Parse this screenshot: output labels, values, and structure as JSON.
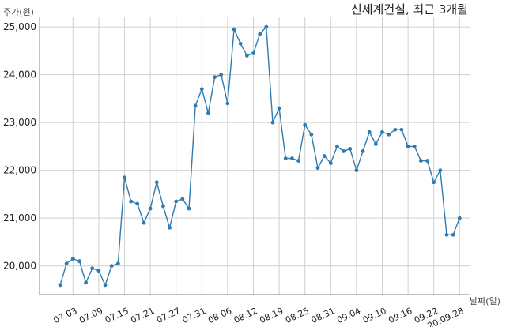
{
  "chart_data": {
    "type": "line",
    "title": "신세계건설, 최근 3개월",
    "ylabel": "주가(원)",
    "xlabel": "날짜(일)",
    "ylim": [
      19400,
      25200
    ],
    "yticks": [
      20000,
      21000,
      22000,
      23000,
      24000,
      25000
    ],
    "ytick_labels": [
      "20,000",
      "21,000",
      "22,000",
      "23,000",
      "24,000",
      "25,000"
    ],
    "xtick_labels": [
      "07.03",
      "07.09",
      "07.15",
      "07.21",
      "07.27",
      "07.31",
      "08.06",
      "08.12",
      "08.19",
      "08.25",
      "08.31",
      "09.04",
      "09.10",
      "09.16",
      "09.22",
      "20.09.28"
    ],
    "xtick_index": [
      2,
      6,
      10,
      14,
      18,
      22,
      26,
      30,
      34,
      38,
      42,
      46,
      50,
      54,
      58,
      62
    ],
    "grid": true,
    "color": "#2f7bb0",
    "series": [
      {
        "values": [
          19600,
          20050,
          20150,
          20100,
          19650,
          19950,
          19900,
          19600,
          20000,
          20050,
          21850,
          21350,
          21300,
          20900,
          21200,
          21750,
          21250,
          20800,
          21350,
          21400,
          21200,
          23350,
          23700,
          23200,
          23950,
          24000,
          23400,
          24950,
          24650,
          24400,
          24450,
          24850,
          25000,
          23000,
          23300,
          22250,
          22250,
          22200,
          22950,
          22750,
          22050,
          22300,
          22150,
          22500,
          22400,
          22450,
          22000,
          22400,
          22800,
          22550,
          22800,
          22750,
          22850,
          22850,
          22500,
          22500,
          22200,
          22200,
          21750,
          22000,
          20650,
          20650,
          21000
        ]
      }
    ]
  }
}
